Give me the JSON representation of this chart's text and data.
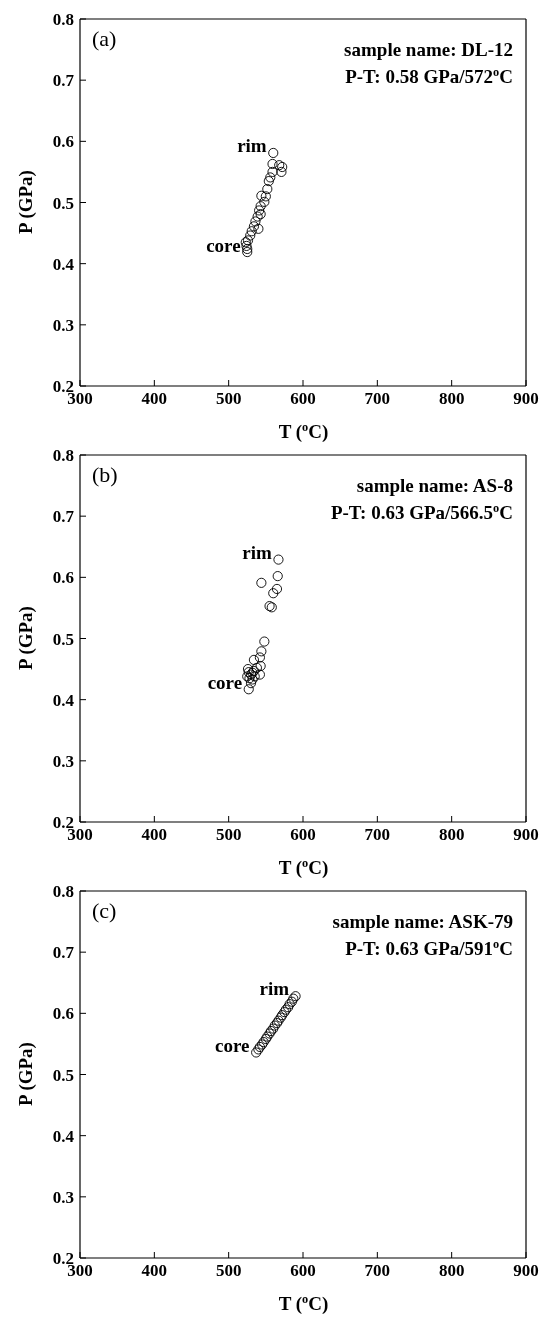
{
  "chart_data": [
    {
      "type": "scatter",
      "title": "(a)",
      "xlabel": "T ($^{o}$C)",
      "ylabel": "P (GPa)",
      "xlim": [
        300,
        900
      ],
      "xticks": [
        300,
        400,
        500,
        600,
        700,
        800,
        900
      ],
      "ylim": [
        0.2,
        0.8
      ],
      "yticks": [
        0.2,
        0.3,
        0.4,
        0.5,
        0.6,
        0.7,
        0.8
      ],
      "marker": "circle",
      "grid": false,
      "legend": false,
      "series": [
        {
          "color": "#000000",
          "x": [
            560,
            559,
            568,
            572,
            571,
            559,
            556,
            554,
            552,
            550,
            544,
            548,
            543,
            541,
            543,
            539,
            536,
            540,
            534,
            531,
            529,
            526,
            523,
            524,
            525,
            525
          ],
          "values": [
            0.581,
            0.563,
            0.561,
            0.558,
            0.55,
            0.55,
            0.541,
            0.535,
            0.522,
            0.51,
            0.511,
            0.501,
            0.494,
            0.487,
            0.481,
            0.477,
            0.469,
            0.457,
            0.461,
            0.453,
            0.446,
            0.438,
            0.435,
            0.429,
            0.424,
            0.419
          ]
        }
      ],
      "annotations": [
        "sample name: DL-12",
        "P-T: 0.58 GPa/572$^{o}$C",
        {
          "text": "rim",
          "x": 560,
          "y": 0.581
        },
        {
          "text": "core",
          "x": 525,
          "y": 0.419
        }
      ]
    },
    {
      "type": "scatter",
      "title": "(b)",
      "xlabel": "T ($^{o}$C)",
      "ylabel": "P (GPa)",
      "xlim": [
        300,
        900
      ],
      "xticks": [
        300,
        400,
        500,
        600,
        700,
        800,
        900
      ],
      "ylim": [
        0.2,
        0.8
      ],
      "yticks": [
        0.2,
        0.3,
        0.4,
        0.5,
        0.6,
        0.7,
        0.8
      ],
      "marker": "circle",
      "grid": false,
      "legend": false,
      "series": [
        {
          "color": "#000000",
          "x": [
            567,
            566,
            544,
            565,
            560,
            555,
            558,
            548,
            544,
            542,
            534,
            543,
            538,
            542,
            535,
            532,
            530,
            527,
            526,
            527,
            530,
            525,
            528,
            532,
            534
          ],
          "values": [
            0.629,
            0.602,
            0.591,
            0.581,
            0.574,
            0.553,
            0.551,
            0.495,
            0.479,
            0.469,
            0.465,
            0.455,
            0.452,
            0.441,
            0.438,
            0.433,
            0.427,
            0.417,
            0.45,
            0.445,
            0.441,
            0.438,
            0.435,
            0.444,
            0.447
          ]
        }
      ],
      "annotations": [
        "sample name: AS-8",
        "P-T: 0.63 GPa/566.5$^{o}$C",
        {
          "text": "rim",
          "x": 567,
          "y": 0.629
        },
        {
          "text": "core",
          "x": 527,
          "y": 0.417
        }
      ]
    },
    {
      "type": "scatter",
      "title": "(c)",
      "xlabel": "T ($^{o}$C)",
      "ylabel": "P (GPa)",
      "xlim": [
        300,
        900
      ],
      "xticks": [
        300,
        400,
        500,
        600,
        700,
        800,
        900
      ],
      "ylim": [
        0.2,
        0.8
      ],
      "yticks": [
        0.2,
        0.3,
        0.4,
        0.5,
        0.6,
        0.7,
        0.8
      ],
      "marker": "circle",
      "grid": false,
      "legend": false,
      "series": [
        {
          "color": "#000000",
          "x": [
            537,
            540,
            542,
            545,
            547,
            550,
            552,
            555,
            557,
            560,
            562,
            565,
            567,
            570,
            572,
            575,
            577,
            580,
            582,
            585,
            587,
            590
          ],
          "values": [
            0.536,
            0.541,
            0.545,
            0.549,
            0.553,
            0.558,
            0.562,
            0.567,
            0.571,
            0.575,
            0.58,
            0.584,
            0.588,
            0.593,
            0.597,
            0.602,
            0.606,
            0.61,
            0.615,
            0.619,
            0.624,
            0.628
          ]
        }
      ],
      "annotations": [
        "sample name: ASK-79",
        "P-T: 0.63 GPa/591$^{o}$C",
        {
          "text": "rim",
          "x": 590,
          "y": 0.628
        },
        {
          "text": "core",
          "x": 537,
          "y": 0.536
        }
      ]
    }
  ]
}
